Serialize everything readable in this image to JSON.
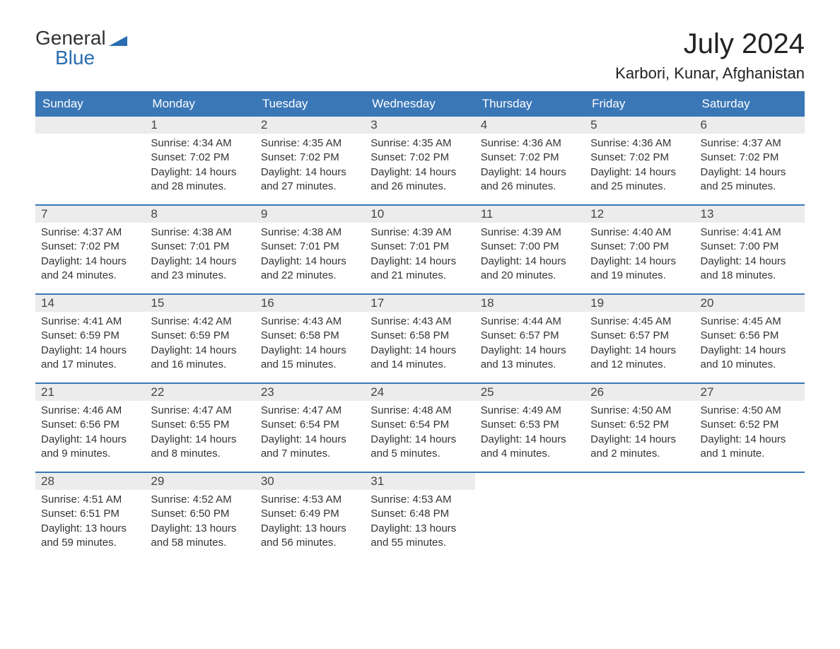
{
  "brand": {
    "line1": "General",
    "line2": "Blue",
    "flag_color": "#2a6db0"
  },
  "title": "July 2024",
  "location": "Karbori, Kunar, Afghanistan",
  "colors": {
    "header_bg": "#3a77b7",
    "header_text": "#ffffff",
    "row_divider": "#3a77b7",
    "daynum_bg": "#ececec",
    "text": "#333333",
    "page_bg": "#ffffff"
  },
  "weekdays": [
    "Sunday",
    "Monday",
    "Tuesday",
    "Wednesday",
    "Thursday",
    "Friday",
    "Saturday"
  ],
  "leading_blanks": 1,
  "days": [
    {
      "n": 1,
      "sunrise": "4:34 AM",
      "sunset": "7:02 PM",
      "daylight": "14 hours and 28 minutes."
    },
    {
      "n": 2,
      "sunrise": "4:35 AM",
      "sunset": "7:02 PM",
      "daylight": "14 hours and 27 minutes."
    },
    {
      "n": 3,
      "sunrise": "4:35 AM",
      "sunset": "7:02 PM",
      "daylight": "14 hours and 26 minutes."
    },
    {
      "n": 4,
      "sunrise": "4:36 AM",
      "sunset": "7:02 PM",
      "daylight": "14 hours and 26 minutes."
    },
    {
      "n": 5,
      "sunrise": "4:36 AM",
      "sunset": "7:02 PM",
      "daylight": "14 hours and 25 minutes."
    },
    {
      "n": 6,
      "sunrise": "4:37 AM",
      "sunset": "7:02 PM",
      "daylight": "14 hours and 25 minutes."
    },
    {
      "n": 7,
      "sunrise": "4:37 AM",
      "sunset": "7:02 PM",
      "daylight": "14 hours and 24 minutes."
    },
    {
      "n": 8,
      "sunrise": "4:38 AM",
      "sunset": "7:01 PM",
      "daylight": "14 hours and 23 minutes."
    },
    {
      "n": 9,
      "sunrise": "4:38 AM",
      "sunset": "7:01 PM",
      "daylight": "14 hours and 22 minutes."
    },
    {
      "n": 10,
      "sunrise": "4:39 AM",
      "sunset": "7:01 PM",
      "daylight": "14 hours and 21 minutes."
    },
    {
      "n": 11,
      "sunrise": "4:39 AM",
      "sunset": "7:00 PM",
      "daylight": "14 hours and 20 minutes."
    },
    {
      "n": 12,
      "sunrise": "4:40 AM",
      "sunset": "7:00 PM",
      "daylight": "14 hours and 19 minutes."
    },
    {
      "n": 13,
      "sunrise": "4:41 AM",
      "sunset": "7:00 PM",
      "daylight": "14 hours and 18 minutes."
    },
    {
      "n": 14,
      "sunrise": "4:41 AM",
      "sunset": "6:59 PM",
      "daylight": "14 hours and 17 minutes."
    },
    {
      "n": 15,
      "sunrise": "4:42 AM",
      "sunset": "6:59 PM",
      "daylight": "14 hours and 16 minutes."
    },
    {
      "n": 16,
      "sunrise": "4:43 AM",
      "sunset": "6:58 PM",
      "daylight": "14 hours and 15 minutes."
    },
    {
      "n": 17,
      "sunrise": "4:43 AM",
      "sunset": "6:58 PM",
      "daylight": "14 hours and 14 minutes."
    },
    {
      "n": 18,
      "sunrise": "4:44 AM",
      "sunset": "6:57 PM",
      "daylight": "14 hours and 13 minutes."
    },
    {
      "n": 19,
      "sunrise": "4:45 AM",
      "sunset": "6:57 PM",
      "daylight": "14 hours and 12 minutes."
    },
    {
      "n": 20,
      "sunrise": "4:45 AM",
      "sunset": "6:56 PM",
      "daylight": "14 hours and 10 minutes."
    },
    {
      "n": 21,
      "sunrise": "4:46 AM",
      "sunset": "6:56 PM",
      "daylight": "14 hours and 9 minutes."
    },
    {
      "n": 22,
      "sunrise": "4:47 AM",
      "sunset": "6:55 PM",
      "daylight": "14 hours and 8 minutes."
    },
    {
      "n": 23,
      "sunrise": "4:47 AM",
      "sunset": "6:54 PM",
      "daylight": "14 hours and 7 minutes."
    },
    {
      "n": 24,
      "sunrise": "4:48 AM",
      "sunset": "6:54 PM",
      "daylight": "14 hours and 5 minutes."
    },
    {
      "n": 25,
      "sunrise": "4:49 AM",
      "sunset": "6:53 PM",
      "daylight": "14 hours and 4 minutes."
    },
    {
      "n": 26,
      "sunrise": "4:50 AM",
      "sunset": "6:52 PM",
      "daylight": "14 hours and 2 minutes."
    },
    {
      "n": 27,
      "sunrise": "4:50 AM",
      "sunset": "6:52 PM",
      "daylight": "14 hours and 1 minute."
    },
    {
      "n": 28,
      "sunrise": "4:51 AM",
      "sunset": "6:51 PM",
      "daylight": "13 hours and 59 minutes."
    },
    {
      "n": 29,
      "sunrise": "4:52 AM",
      "sunset": "6:50 PM",
      "daylight": "13 hours and 58 minutes."
    },
    {
      "n": 30,
      "sunrise": "4:53 AM",
      "sunset": "6:49 PM",
      "daylight": "13 hours and 56 minutes."
    },
    {
      "n": 31,
      "sunrise": "4:53 AM",
      "sunset": "6:48 PM",
      "daylight": "13 hours and 55 minutes."
    }
  ],
  "labels": {
    "sunrise": "Sunrise:",
    "sunset": "Sunset:",
    "daylight": "Daylight:"
  }
}
